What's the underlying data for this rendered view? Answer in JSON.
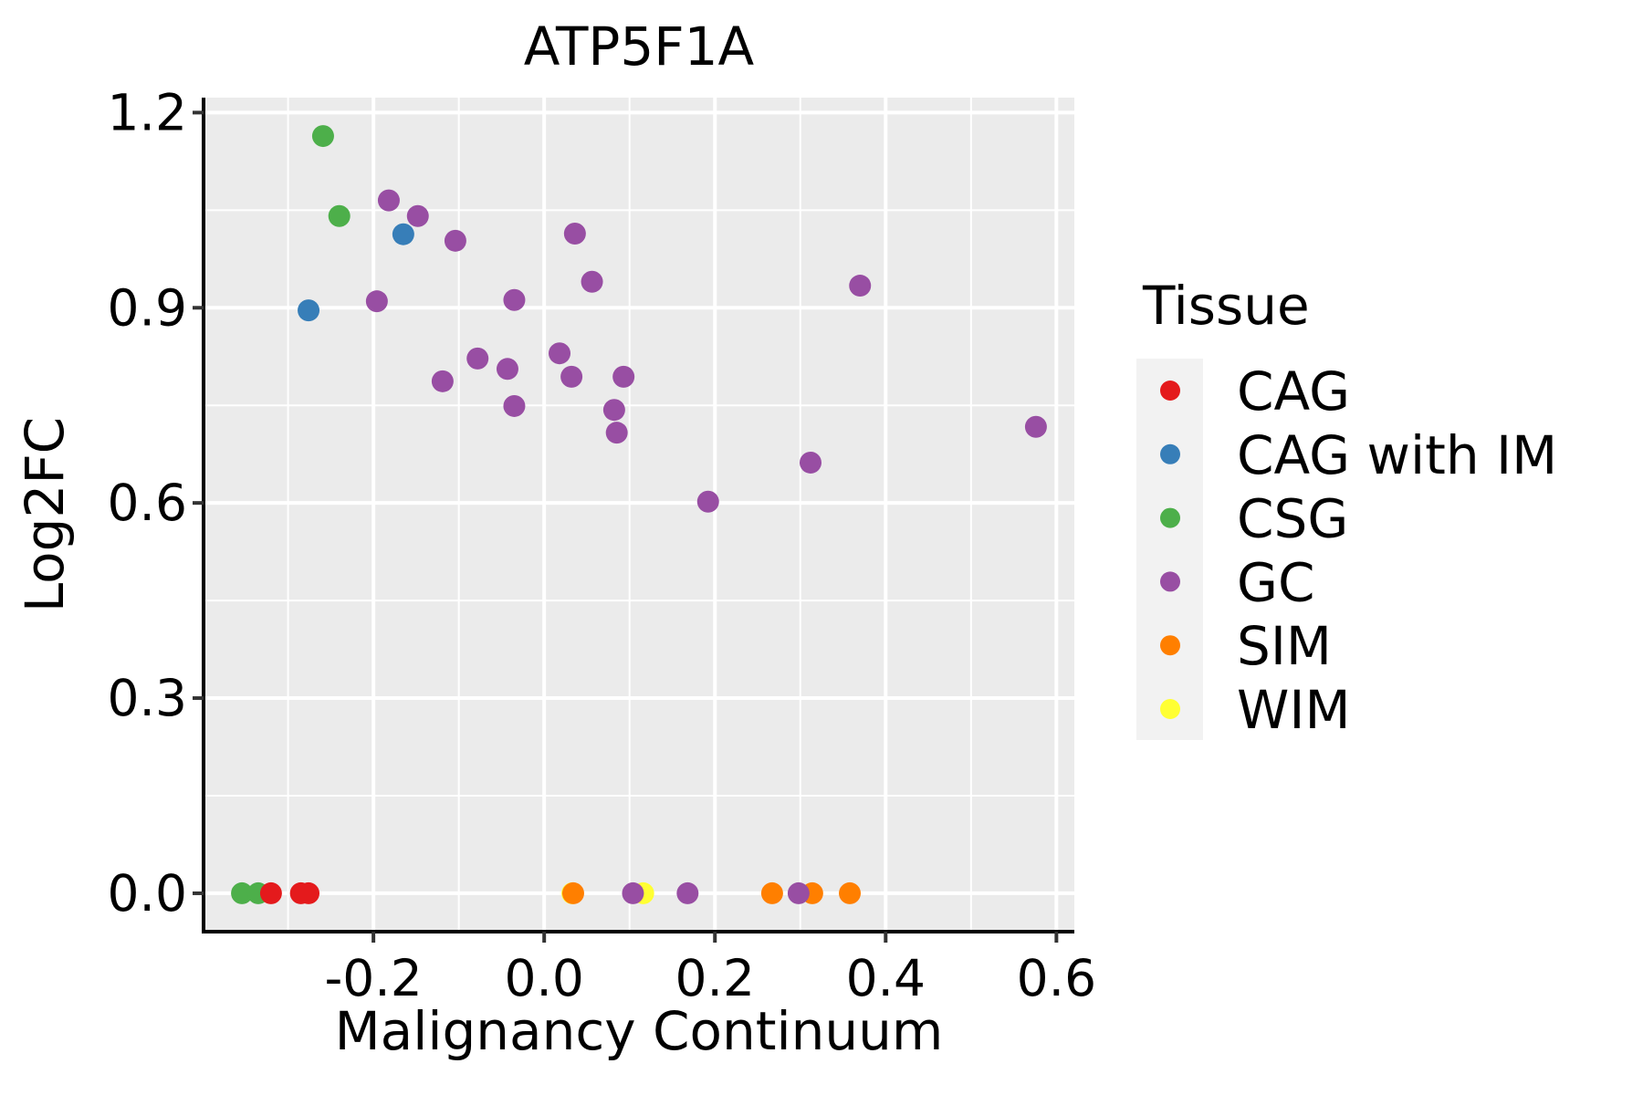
{
  "chart_data": {
    "type": "scatter",
    "title": "ATP5F1A",
    "xlabel": "Malignancy Continuum",
    "ylabel": "Log2FC",
    "xlim": [
      -0.399,
      0.621
    ],
    "ylim": [
      -0.059,
      1.223
    ],
    "x_ticks": [
      -0.2,
      0.0,
      0.2,
      0.4,
      0.6
    ],
    "x_tick_labels": [
      "-0.2",
      "0.0",
      "0.2",
      "0.4",
      "0.6"
    ],
    "x_minor_ticks": [
      -0.3,
      -0.1,
      0.1,
      0.3,
      0.5
    ],
    "y_ticks": [
      0.0,
      0.3,
      0.6,
      0.9,
      1.2
    ],
    "y_tick_labels": [
      "0.0",
      "0.3",
      "0.6",
      "0.9",
      "1.2"
    ],
    "y_minor_ticks": [
      0.15,
      0.45,
      0.75,
      1.05
    ],
    "grid": true,
    "legend": {
      "title": "Tissue",
      "position": "right",
      "entries": [
        {
          "label": "CAG",
          "color": "#E41A1C"
        },
        {
          "label": "CAG with IM",
          "color": "#377EB8"
        },
        {
          "label": "CSG",
          "color": "#4DAF4A"
        },
        {
          "label": "GC",
          "color": "#984EA3"
        },
        {
          "label": "SIM",
          "color": "#FF7F00"
        },
        {
          "label": "WIM",
          "color": "#FFFF33"
        }
      ]
    },
    "series": [
      {
        "name": "WIM",
        "color": "#FFFF33",
        "points": [
          [
            0.116,
            0.0
          ],
          [
            0.033,
            0.0
          ]
        ]
      },
      {
        "name": "SIM",
        "color": "#FF7F00",
        "points": [
          [
            0.034,
            0.0
          ],
          [
            0.267,
            0.0
          ],
          [
            0.314,
            0.0
          ],
          [
            0.358,
            0.0
          ]
        ]
      },
      {
        "name": "CSG",
        "color": "#4DAF4A",
        "points": [
          [
            -0.259,
            1.164
          ],
          [
            -0.24,
            1.041
          ],
          [
            -0.354,
            0.0
          ],
          [
            -0.335,
            0.0
          ]
        ]
      },
      {
        "name": "CAG",
        "color": "#E41A1C",
        "points": [
          [
            -0.32,
            0.0
          ],
          [
            -0.285,
            0.0
          ],
          [
            -0.276,
            0.0
          ]
        ]
      },
      {
        "name": "CAG with IM",
        "color": "#377EB8",
        "points": [
          [
            -0.276,
            0.896
          ],
          [
            -0.165,
            1.013
          ]
        ]
      },
      {
        "name": "GC",
        "color": "#984EA3",
        "points": [
          [
            -0.182,
            1.065
          ],
          [
            -0.148,
            1.041
          ],
          [
            -0.104,
            1.003
          ],
          [
            -0.196,
            0.91
          ],
          [
            -0.035,
            0.912
          ],
          [
            0.036,
            1.014
          ],
          [
            0.056,
            0.94
          ],
          [
            -0.119,
            0.787
          ],
          [
            -0.078,
            0.822
          ],
          [
            -0.043,
            0.806
          ],
          [
            -0.035,
            0.749
          ],
          [
            0.018,
            0.83
          ],
          [
            0.032,
            0.794
          ],
          [
            0.093,
            0.794
          ],
          [
            0.082,
            0.743
          ],
          [
            0.085,
            0.708
          ],
          [
            0.37,
            0.934
          ],
          [
            0.312,
            0.662
          ],
          [
            0.576,
            0.717
          ],
          [
            0.192,
            0.602
          ],
          [
            0.104,
            0.0
          ],
          [
            0.168,
            0.0
          ],
          [
            0.298,
            0.0
          ]
        ]
      }
    ]
  },
  "colors": {
    "panel_background": "#EBEBEB",
    "grid": "#FFFFFF",
    "legend_key_background": "#F2F2F2"
  }
}
